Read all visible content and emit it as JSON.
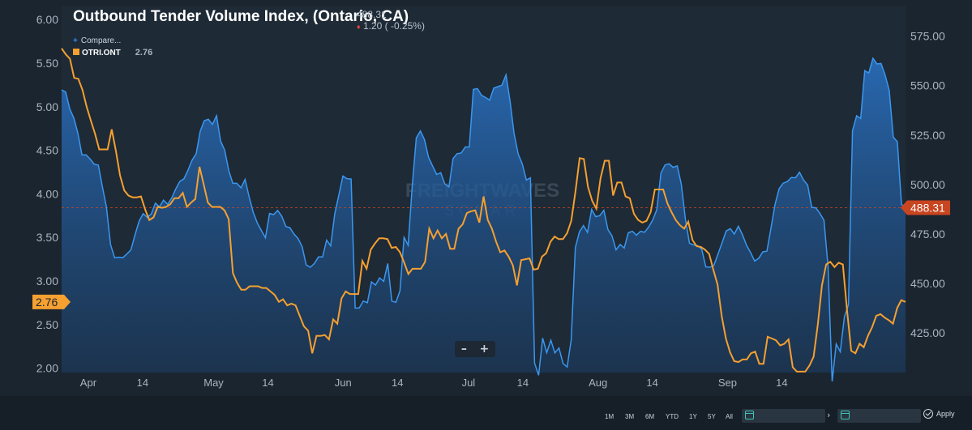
{
  "header": {
    "title": "Outbound Tender Volume Index, (Ontario, CA)",
    "last_value": "488.31",
    "change": "1.20 ( -0.25%)",
    "down_marker": "♦"
  },
  "legend": {
    "compare_label": "Compare...",
    "series_name": "OTRI.ONT",
    "series_value": "2.76"
  },
  "zoom": {
    "minus": "–",
    "plus": "+"
  },
  "watermark": "FREIGHTWAVES SONAR",
  "range_buttons": [
    "1M",
    "3M",
    "6M",
    "YTD",
    "1Y",
    "5Y",
    "All"
  ],
  "date_nav_arrow": "›",
  "apply_label": "Apply",
  "colors": {
    "otvi": "#3a97f0",
    "otri": "#f5a030",
    "otvi_badge": "#c84520",
    "otri_badge": "#f5a030",
    "background": "#1b2530"
  },
  "chart_data": {
    "type": "line",
    "x_ticks": [
      "Apr",
      "14",
      "May",
      "14",
      "Jun",
      "14",
      "Jul",
      "14",
      "Aug",
      "14",
      "Sep",
      "14"
    ],
    "left_axis": {
      "series": "OTRI.ONT",
      "range": [
        1.95,
        6.15
      ],
      "ticks": [
        "6.00",
        "5.50",
        "5.00",
        "4.50",
        "4.00",
        "3.50",
        "3.00",
        "2.50",
        "2.00"
      ],
      "current_label": "2.76"
    },
    "right_axis": {
      "series": "OTVI.ONT",
      "range": [
        405,
        590
      ],
      "ticks": [
        "575.00",
        "550.00",
        "525.00",
        "500.00",
        "475.00",
        "450.00",
        "425.00"
      ],
      "current_label": "488.31"
    },
    "series": [
      {
        "name": "OTRI.ONT",
        "axis": "left",
        "values": [
          5.67,
          5.6,
          5.55,
          5.33,
          5.32,
          5.19,
          5.0,
          4.84,
          4.69,
          4.51,
          4.51,
          4.51,
          4.74,
          4.49,
          4.21,
          4.04,
          3.98,
          3.96,
          3.96,
          3.97,
          3.82,
          3.7,
          3.73,
          3.85,
          3.84,
          3.85,
          3.88,
          3.95,
          3.95,
          4.01,
          3.85,
          3.9,
          3.94,
          4.31,
          4.11,
          3.9,
          3.85,
          3.85,
          3.85,
          3.81,
          3.71,
          3.09,
          2.98,
          2.9,
          2.9,
          2.94,
          2.94,
          2.94,
          2.92,
          2.92,
          2.88,
          2.84,
          2.76,
          2.79,
          2.72,
          2.74,
          2.72,
          2.6,
          2.48,
          2.43,
          2.17,
          2.37,
          2.37,
          2.38,
          2.33,
          2.56,
          2.51,
          2.8,
          2.88,
          2.85,
          2.85,
          2.85,
          3.23,
          3.14,
          3.36,
          3.43,
          3.49,
          3.49,
          3.48,
          3.38,
          3.39,
          3.33,
          3.21,
          3.08,
          3.14,
          3.14,
          3.14,
          3.22,
          3.6,
          3.49,
          3.58,
          3.49,
          3.54,
          3.37,
          3.37,
          3.6,
          3.65,
          3.78,
          3.8,
          3.81,
          3.67,
          3.97,
          3.7,
          3.6,
          3.45,
          3.33,
          3.35,
          3.28,
          3.18,
          2.95,
          3.24,
          3.25,
          3.26,
          3.13,
          3.14,
          3.28,
          3.32,
          3.45,
          3.51,
          3.48,
          3.48,
          3.55,
          3.69,
          4.03,
          4.41,
          4.4,
          4.08,
          3.92,
          3.83,
          4.18,
          4.38,
          4.38,
          3.98,
          4.13,
          4.13,
          3.97,
          3.95,
          3.77,
          3.7,
          3.67,
          3.69,
          3.79,
          4.05,
          4.05,
          4.05,
          3.89,
          3.79,
          3.7,
          3.64,
          3.6,
          3.68,
          3.47,
          3.4,
          3.39,
          3.36,
          3.31,
          3.13,
          2.96,
          2.6,
          2.34,
          2.18,
          2.08,
          2.07,
          2.1,
          2.1,
          2.17,
          2.19,
          2.05,
          2.05,
          2.36,
          2.34,
          2.32,
          2.26,
          2.28,
          2.33,
          2.01,
          1.96,
          1.96,
          1.96,
          2.03,
          2.13,
          2.5,
          2.95,
          3.19,
          3.22,
          3.16,
          3.21,
          3.19,
          2.66,
          2.2,
          2.17,
          2.28,
          2.24,
          2.37,
          2.47,
          2.6,
          2.62,
          2.58,
          2.55,
          2.51,
          2.69,
          2.78,
          2.76
        ]
      },
      {
        "name": "OTVI.ONT",
        "axis": "right",
        "values": [
          547.8,
          546.8,
          538.2,
          533.6,
          525.9,
          515.0,
          515.0,
          512.9,
          510.3,
          509.8,
          498.9,
          488.6,
          469.8,
          463.0,
          463.3,
          463.0,
          464.9,
          467.0,
          474.5,
          481.5,
          485.3,
          483.4,
          485.1,
          490.6,
          488.8,
          492.1,
          490.0,
          493.2,
          497.8,
          501.6,
          502.9,
          507.3,
          512.3,
          515.6,
          527.0,
          532.3,
          533.0,
          530.4,
          534.8,
          522.0,
          517.3,
          507.0,
          500.6,
          500.6,
          498.3,
          502.6,
          493.8,
          485.9,
          480.6,
          476.8,
          473.1,
          485.4,
          484.8,
          486.9,
          484.0,
          478.8,
          478.2,
          475.0,
          472.7,
          468.6,
          459.4,
          458.2,
          460.1,
          463.4,
          463.4,
          471.9,
          469.0,
          485.1,
          494.8,
          504.3,
          503.0,
          502.8,
          437.6,
          437.6,
          441.1,
          440.3,
          450.8,
          449.2,
          452.8,
          451.1,
          460.1,
          441.1,
          440.5,
          446.3,
          473.3,
          469.3,
          499.3,
          523.6,
          527.1,
          522.7,
          513.8,
          509.4,
          505.1,
          506.0,
          500.3,
          498.8,
          513.1,
          515.6,
          515.9,
          519.0,
          519.0,
          548.1,
          548.5,
          545.1,
          544.0,
          542.7,
          548.8,
          549.5,
          550.2,
          555.4,
          542.1,
          525.6,
          515.5,
          510.4,
          502.3,
          503.4,
          409.8,
          403.6,
          422.4,
          415.0,
          421.3,
          414.9,
          417.4,
          409.5,
          407.8,
          421.5,
          468.1,
          476.1,
          479.3,
          475.8,
          487.4,
          483.8,
          484.3,
          487.0,
          477.3,
          474.1,
          467.0,
          469.7,
          467.9,
          475.6,
          476.4,
          474.4,
          476.4,
          475.9,
          478.6,
          482.1,
          487.3,
          505.8,
          509.9,
          510.5,
          508.7,
          509.4,
          500.3,
          482.7,
          470.3,
          469.5,
          469.1,
          467.3,
          458.4,
          458.2,
          459.1,
          464.9,
          470.6,
          476.5,
          477.7,
          475.0,
          478.9,
          474.7,
          469.3,
          465.6,
          461.3,
          462.8,
          466.0,
          466.3,
          477.9,
          490.1,
          497.9,
          500.7,
          501.5,
          503.6,
          503.4,
          506.2,
          502.3,
          499.7,
          488.5,
          488.2,
          485.4,
          482.0,
          458.6,
          400.5,
          419.4,
          415.5,
          433.1,
          439.2,
          527.3,
          534.8,
          533.4,
          557.6,
          556.4,
          563.8,
          561.0,
          561.2,
          555.3,
          547.5,
          524.0,
          521.6,
          490.0,
          488.3
        ]
      }
    ]
  }
}
